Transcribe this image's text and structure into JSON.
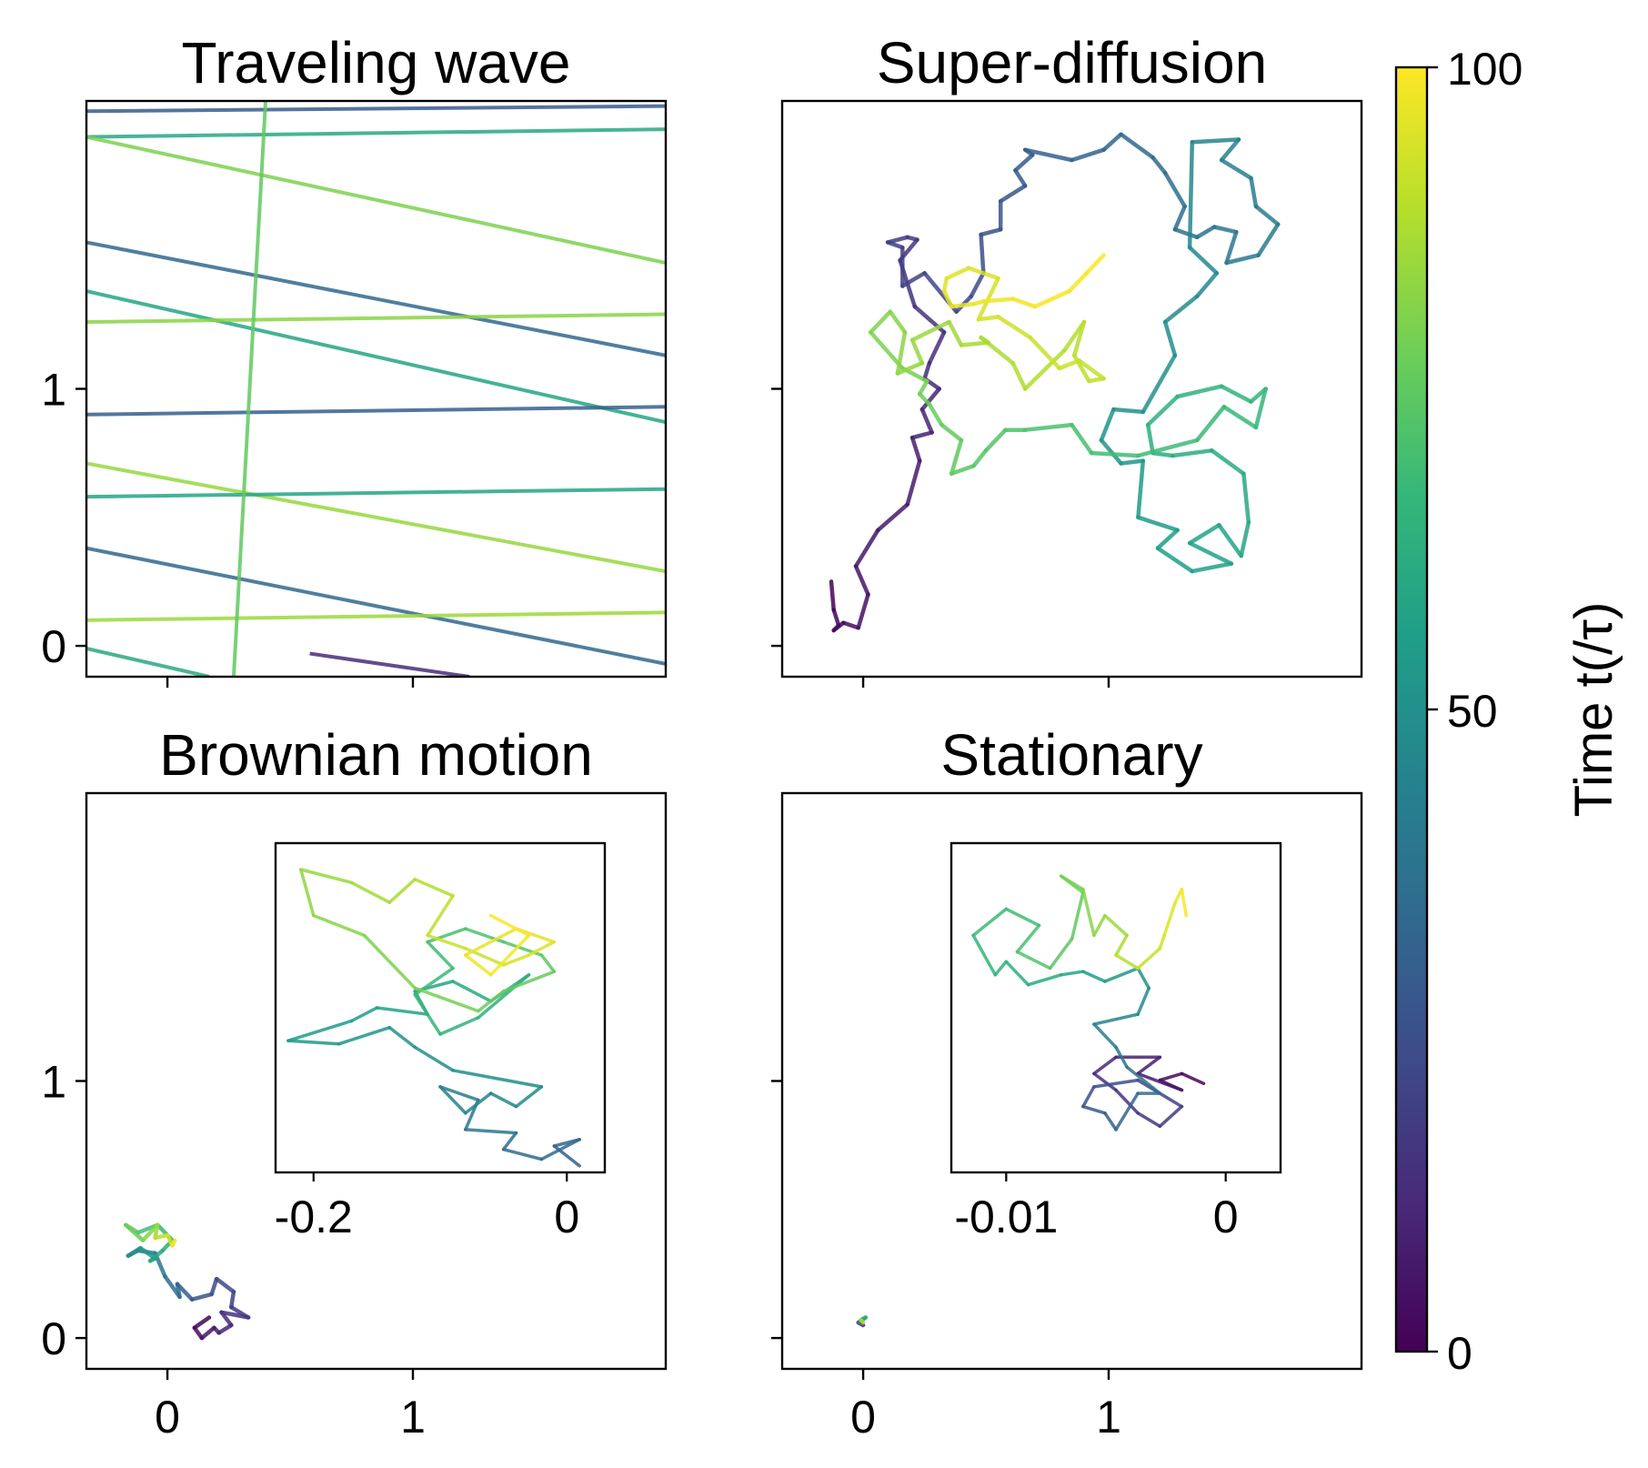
{
  "chart_data": [
    {
      "type": "line",
      "title": "Traveling wave",
      "xlim": [
        -0.33,
        2.03
      ],
      "ylim": [
        -0.12,
        2.12
      ],
      "yticks": [
        "0",
        "1"
      ],
      "xtick_labels_shown": false,
      "color_encodes": "time",
      "series": [
        {
          "t": 29,
          "x": [
            -0.33,
            2.03
          ],
          "y": [
            2.08,
            2.1
          ]
        },
        {
          "t": 60,
          "x": [
            -0.33,
            2.03
          ],
          "y": [
            1.98,
            2.01
          ]
        },
        {
          "t": 80,
          "x": [
            -0.33,
            2.03
          ],
          "y": [
            1.98,
            1.49
          ]
        },
        {
          "t": 33,
          "x": [
            -0.33,
            2.03
          ],
          "y": [
            1.57,
            1.13
          ]
        },
        {
          "t": 58,
          "x": [
            -0.33,
            2.03
          ],
          "y": [
            1.38,
            0.87
          ]
        },
        {
          "t": 82,
          "x": [
            -0.33,
            2.03
          ],
          "y": [
            1.26,
            1.29
          ]
        },
        {
          "t": 30,
          "x": [
            -0.33,
            2.03
          ],
          "y": [
            0.9,
            0.93
          ]
        },
        {
          "t": 84,
          "x": [
            -0.33,
            2.03
          ],
          "y": [
            0.71,
            0.29
          ]
        },
        {
          "t": 58,
          "x": [
            -0.33,
            2.03
          ],
          "y": [
            0.58,
            0.61
          ]
        },
        {
          "t": 33,
          "x": [
            -0.33,
            2.03
          ],
          "y": [
            0.38,
            -0.07
          ]
        },
        {
          "t": 85,
          "x": [
            -0.33,
            2.03
          ],
          "y": [
            0.1,
            0.13
          ]
        },
        {
          "t": 60,
          "x": [
            -0.33,
            0.17
          ],
          "y": [
            -0.01,
            -0.12
          ]
        },
        {
          "t": 75,
          "x": [
            0.4,
            0.27
          ],
          "y": [
            2.12,
            -0.12
          ]
        },
        {
          "t": 12,
          "x": [
            0.58,
            1.23
          ],
          "y": [
            -0.03,
            -0.12
          ]
        }
      ]
    },
    {
      "type": "line",
      "title": "Super-diffusion",
      "xlim": [
        -0.33,
        2.03
      ],
      "ylim": [
        -0.12,
        2.12
      ],
      "tick_labels_shown": false,
      "color_encodes": "time",
      "series": [
        {
          "t_range": [
            0,
            18
          ],
          "x": [
            -0.13,
            -0.12,
            -0.1,
            -0.12,
            -0.08,
            -0.02,
            0.02,
            -0.03,
            0.06,
            0.18,
            0.23,
            0.2,
            0.28,
            0.24,
            0.31,
            0.25,
            0.27,
            0.33,
            0.21,
            0.15,
            0.22,
            0.18,
            0.1
          ],
          "y": [
            0.25,
            0.14,
            0.08,
            0.06,
            0.09,
            0.07,
            0.2,
            0.31,
            0.45,
            0.55,
            0.72,
            0.81,
            0.83,
            0.92,
            1.0,
            1.04,
            1.1,
            1.22,
            1.32,
            1.5,
            1.58,
            1.59,
            1.57
          ]
        },
        {
          "t_range": [
            18,
            36
          ],
          "x": [
            0.1,
            0.16,
            0.16,
            0.25,
            0.38,
            0.44,
            0.49,
            0.48,
            0.56,
            0.56,
            0.66,
            0.62,
            0.69,
            0.66,
            0.85,
            0.98,
            1.05,
            1.18,
            1.23,
            1.31
          ],
          "y": [
            1.57,
            1.55,
            1.4,
            1.45,
            1.3,
            1.36,
            1.45,
            1.6,
            1.62,
            1.73,
            1.79,
            1.85,
            1.91,
            1.93,
            1.89,
            1.93,
            1.99,
            1.9,
            1.84,
            1.71
          ]
        },
        {
          "t_range": [
            36,
            52
          ],
          "x": [
            1.31,
            1.27,
            1.36,
            1.43,
            1.52,
            1.48,
            1.61,
            1.69,
            1.6,
            1.58,
            1.46,
            1.53,
            1.34,
            1.33,
            1.44,
            1.36,
            1.23,
            1.27,
            1.14,
            1.02,
            0.97
          ],
          "y": [
            1.71,
            1.62,
            1.59,
            1.63,
            1.61,
            1.49,
            1.52,
            1.64,
            1.71,
            1.82,
            1.89,
            1.97,
            1.96,
            1.55,
            1.45,
            1.36,
            1.26,
            1.13,
            0.91,
            0.92,
            0.8
          ]
        },
        {
          "t_range": [
            52,
            68
          ],
          "x": [
            0.97,
            1.05,
            1.14,
            1.12,
            1.28,
            1.2,
            1.34,
            1.5,
            1.33,
            1.45,
            1.54,
            1.57,
            1.55,
            1.42,
            1.26,
            1.18,
            1.16,
            1.28,
            1.46,
            1.58,
            1.64,
            1.6,
            1.47,
            1.36
          ],
          "y": [
            0.8,
            0.71,
            0.72,
            0.5,
            0.45,
            0.38,
            0.29,
            0.32,
            0.4,
            0.47,
            0.35,
            0.48,
            0.67,
            0.76,
            0.74,
            0.75,
            0.86,
            0.97,
            1.01,
            0.95,
            1.0,
            0.85,
            0.93,
            0.8
          ]
        },
        {
          "t_range": [
            68,
            86
          ],
          "x": [
            1.36,
            1.12,
            0.93,
            0.85,
            0.66,
            0.58,
            0.5,
            0.45,
            0.36,
            0.4,
            0.32,
            0.27,
            0.23,
            0.26,
            0.16,
            0.03,
            0.11,
            0.17,
            0.14,
            0.24,
            0.2,
            0.35,
            0.4
          ],
          "y": [
            0.8,
            0.74,
            0.75,
            0.86,
            0.84,
            0.84,
            0.76,
            0.7,
            0.67,
            0.8,
            0.86,
            0.94,
            0.98,
            1.03,
            1.08,
            1.22,
            1.3,
            1.22,
            1.06,
            1.1,
            1.19,
            1.26,
            1.17
          ]
        },
        {
          "t_range": [
            86,
            100
          ],
          "x": [
            0.4,
            0.51,
            0.48,
            0.61,
            0.66,
            0.82,
            0.9,
            0.86,
            0.92,
            0.98,
            0.88,
            0.8,
            0.68,
            0.55,
            0.47,
            0.55,
            0.43,
            0.34,
            0.33,
            0.36,
            0.45,
            0.49,
            0.61,
            0.7,
            0.84,
            0.91,
            0.98
          ],
          "y": [
            1.17,
            1.18,
            1.2,
            1.1,
            1.0,
            1.15,
            1.26,
            1.13,
            1.03,
            1.04,
            1.11,
            1.08,
            1.2,
            1.28,
            1.27,
            1.43,
            1.47,
            1.43,
            1.38,
            1.32,
            1.33,
            1.34,
            1.35,
            1.32,
            1.38,
            1.45,
            1.52
          ]
        }
      ]
    },
    {
      "type": "line",
      "title": "Brownian motion",
      "xlim": [
        -0.33,
        2.03
      ],
      "ylim": [
        -0.12,
        2.12
      ],
      "xticks": [
        "0",
        "1"
      ],
      "yticks": [
        "0",
        "1"
      ],
      "color_encodes": "time",
      "series": [
        {
          "t_range": [
            0,
            25
          ],
          "x": [
            0.17,
            0.11,
            0.14,
            0.19,
            0.21,
            0.26,
            0.22,
            0.33,
            0.26,
            0.27,
            0.2,
            0.18
          ],
          "y": [
            0.08,
            0.04,
            0.0,
            0.04,
            0.02,
            0.05,
            0.1,
            0.08,
            0.12,
            0.18,
            0.23,
            0.17
          ]
        },
        {
          "t_range": [
            25,
            50
          ],
          "x": [
            0.18,
            0.1,
            0.04,
            0.05,
            -0.01,
            -0.05,
            -0.12,
            -0.16,
            -0.11
          ],
          "y": [
            0.17,
            0.15,
            0.21,
            0.16,
            0.24,
            0.33,
            0.34,
            0.32,
            0.35
          ]
        },
        {
          "t_range": [
            50,
            75
          ],
          "x": [
            -0.11,
            -0.05,
            -0.07,
            -0.02,
            0.02,
            -0.04,
            -0.12,
            -0.17
          ],
          "y": [
            0.35,
            0.31,
            0.3,
            0.34,
            0.38,
            0.44,
            0.41,
            0.44
          ]
        },
        {
          "t_range": [
            75,
            100
          ],
          "x": [
            -0.17,
            -0.1,
            -0.04,
            -0.05,
            0.0,
            0.02,
            0.03
          ],
          "y": [
            0.44,
            0.38,
            0.44,
            0.39,
            0.4,
            0.36,
            0.38
          ]
        }
      ],
      "inset": {
        "xlim": [
          -0.23,
          0.03
        ],
        "xticks": [
          "-0.2",
          "0"
        ],
        "ylim": [
          0.0,
          1.0
        ],
        "series": [
          {
            "t_range": [
              30,
              48
            ],
            "x": [
              0.01,
              -0.01,
              0.01,
              -0.02,
              -0.05,
              -0.04,
              -0.08,
              -0.07,
              -0.1,
              -0.08,
              -0.06,
              -0.04,
              -0.02
            ],
            "y": [
              0.02,
              0.08,
              0.1,
              0.04,
              0.07,
              0.12,
              0.13,
              0.22,
              0.26,
              0.18,
              0.24,
              0.2,
              0.26
            ]
          },
          {
            "t_range": [
              48,
              62
            ],
            "x": [
              -0.02,
              -0.09,
              -0.12,
              -0.14,
              -0.18,
              -0.22,
              -0.17,
              -0.15,
              -0.11,
              -0.12,
              -0.09,
              -0.06,
              -0.03
            ],
            "y": [
              0.26,
              0.31,
              0.38,
              0.44,
              0.39,
              0.4,
              0.46,
              0.5,
              0.48,
              0.55,
              0.58,
              0.52,
              0.6
            ]
          },
          {
            "t_range": [
              62,
              78
            ],
            "x": [
              -0.03,
              -0.07,
              -0.1,
              -0.12,
              -0.09,
              -0.11,
              -0.08,
              -0.05,
              -0.02,
              -0.01,
              -0.05,
              -0.07
            ],
            "y": [
              0.6,
              0.47,
              0.42,
              0.54,
              0.62,
              0.7,
              0.74,
              0.7,
              0.66,
              0.61,
              0.55,
              0.49
            ]
          },
          {
            "t_range": [
              78,
              92
            ],
            "x": [
              -0.07,
              -0.12,
              -0.16,
              -0.2,
              -0.21,
              -0.17,
              -0.14,
              -0.12,
              -0.09,
              -0.11,
              -0.08
            ],
            "y": [
              0.49,
              0.56,
              0.72,
              0.78,
              0.92,
              0.88,
              0.82,
              0.89,
              0.84,
              0.72,
              0.68
            ]
          },
          {
            "t_range": [
              92,
              100
            ],
            "x": [
              -0.08,
              -0.05,
              -0.03,
              -0.01,
              -0.04,
              -0.08,
              -0.06,
              -0.03,
              -0.06
            ],
            "y": [
              0.68,
              0.63,
              0.66,
              0.7,
              0.74,
              0.66,
              0.6,
              0.72,
              0.78
            ]
          }
        ]
      }
    },
    {
      "type": "line",
      "title": "Stationary",
      "xlim": [
        -0.33,
        2.03
      ],
      "ylim": [
        -0.12,
        2.12
      ],
      "xticks": [
        "0",
        "1"
      ],
      "yticks_shown": true,
      "ytick_labels_shown": false,
      "color_encodes": "time",
      "series": [
        {
          "t_range": [
            0,
            100
          ],
          "x": [
            0.0,
            -0.02,
            0.01,
            -0.01,
            0.0
          ],
          "y": [
            0.05,
            0.06,
            0.08,
            0.07,
            0.06
          ]
        }
      ],
      "inset": {
        "xlim": [
          -0.0125,
          0.0025
        ],
        "xticks": [
          "-0.01",
          "0"
        ],
        "ylim": [
          0.0,
          1.0
        ],
        "series": [
          {
            "t_range": [
              0,
              22
            ],
            "x": [
              -0.001,
              -0.002,
              -0.003,
              -0.002,
              -0.004,
              -0.003,
              -0.005,
              -0.006,
              -0.005,
              -0.004,
              -0.003,
              -0.002,
              -0.003,
              -0.004
            ],
            "y": [
              0.27,
              0.3,
              0.28,
              0.25,
              0.3,
              0.35,
              0.35,
              0.3,
              0.25,
              0.18,
              0.14,
              0.2,
              0.24,
              0.28
            ]
          },
          {
            "t_range": [
              22,
              40
            ],
            "x": [
              -0.004,
              -0.006,
              -0.0065,
              -0.0055,
              -0.005,
              -0.004,
              -0.003,
              -0.0045,
              -0.005
            ],
            "y": [
              0.28,
              0.26,
              0.2,
              0.18,
              0.13,
              0.24,
              0.24,
              0.32,
              0.38
            ]
          },
          {
            "t_range": [
              40,
              60
            ],
            "x": [
              -0.005,
              -0.006,
              -0.004,
              -0.0035,
              -0.004,
              -0.0055,
              -0.0065,
              -0.0075
            ],
            "y": [
              0.38,
              0.45,
              0.48,
              0.56,
              0.62,
              0.58,
              0.61,
              0.6
            ]
          },
          {
            "t_range": [
              60,
              78
            ],
            "x": [
              -0.0075,
              -0.009,
              -0.01,
              -0.0105,
              -0.0115,
              -0.01,
              -0.0085,
              -0.0095,
              -0.008,
              -0.007,
              -0.0065,
              -0.0075
            ],
            "y": [
              0.6,
              0.57,
              0.64,
              0.6,
              0.72,
              0.8,
              0.75,
              0.67,
              0.62,
              0.71,
              0.85,
              0.9
            ]
          },
          {
            "t_range": [
              78,
              92
            ],
            "x": [
              -0.0075,
              -0.0065,
              -0.006,
              -0.0055,
              -0.0045,
              -0.005,
              -0.004,
              -0.003
            ],
            "y": [
              0.9,
              0.86,
              0.72,
              0.78,
              0.72,
              0.66,
              0.62,
              0.68
            ]
          },
          {
            "t_range": [
              92,
              100
            ],
            "x": [
              -0.003,
              -0.0028,
              -0.0023,
              -0.002,
              -0.0018
            ],
            "y": [
              0.68,
              0.72,
              0.82,
              0.86,
              0.78
            ]
          }
        ]
      }
    }
  ],
  "colorbar": {
    "label": "Time t(/τ)",
    "ticks": [
      "0",
      "50",
      "100"
    ],
    "vmin": 0,
    "vmax": 100,
    "colormap": "viridis",
    "stops": [
      "#440154",
      "#482878",
      "#3e4989",
      "#31688e",
      "#26828e",
      "#1f9e89",
      "#35b779",
      "#6ece58",
      "#b5de2b",
      "#fde725"
    ]
  }
}
